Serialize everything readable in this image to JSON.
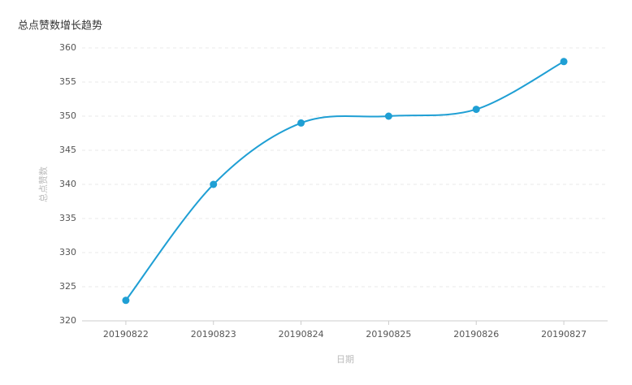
{
  "chart_data": {
    "type": "line",
    "title": "总点赞数增长趋势",
    "x_label": "日期",
    "y_label": "总点赞数",
    "categories": [
      "20190822",
      "20190823",
      "20190824",
      "20190825",
      "20190826",
      "20190827"
    ],
    "series": [
      {
        "name": "总点赞数",
        "color": "#1f9fd4",
        "values": [
          323,
          340,
          349,
          350,
          351,
          358
        ]
      }
    ],
    "ylim": [
      320,
      360
    ],
    "yticks": [
      320,
      325,
      330,
      335,
      340,
      345,
      350,
      355,
      360
    ],
    "grid": true,
    "smooth": true
  }
}
